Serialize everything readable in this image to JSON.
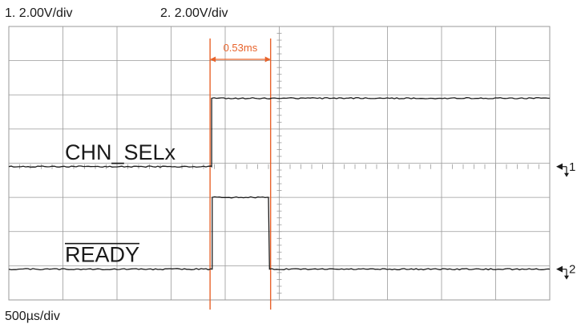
{
  "header": {
    "ch1_scale": "1.   2.00V/div",
    "ch2_scale": "2.   2.00V/div"
  },
  "footer": {
    "timebase": "500µs/div"
  },
  "colors": {
    "trace": "#1a1a1a",
    "grid": "#9a9a9a",
    "cursor": "#e8632b"
  },
  "chart_data": {
    "type": "line",
    "title": "",
    "xlabel": "",
    "ylabel": "",
    "divisions": {
      "x": 10,
      "y": 8
    },
    "time_per_div_us": 500,
    "volts_per_div": [
      2.0,
      2.0
    ],
    "grid": true,
    "cursors": {
      "x_us": [
        1875,
        2405
      ],
      "delta_label": "0.53ms"
    },
    "series": [
      {
        "name": "CHN_SELx",
        "channel_marker": "1",
        "ground_div": 3.9,
        "x_us": [
          0,
          1875,
          1875,
          5000
        ],
        "y_div": [
          3.9,
          3.9,
          5.9,
          5.9
        ]
      },
      {
        "name": "READY",
        "overline": true,
        "channel_marker": "2",
        "ground_div": 0.9,
        "x_us": [
          0,
          1875,
          1875,
          1880,
          1880,
          2400,
          2400,
          2410,
          2410,
          5000
        ],
        "y_div": [
          0.9,
          0.9,
          0.9,
          0.9,
          3.0,
          3.0,
          3.0,
          0.9,
          0.9,
          0.9
        ]
      }
    ],
    "labels": [
      {
        "text": "CHN_SELx",
        "series": 0
      },
      {
        "text": "READY",
        "series": 1,
        "overline": true
      }
    ]
  }
}
